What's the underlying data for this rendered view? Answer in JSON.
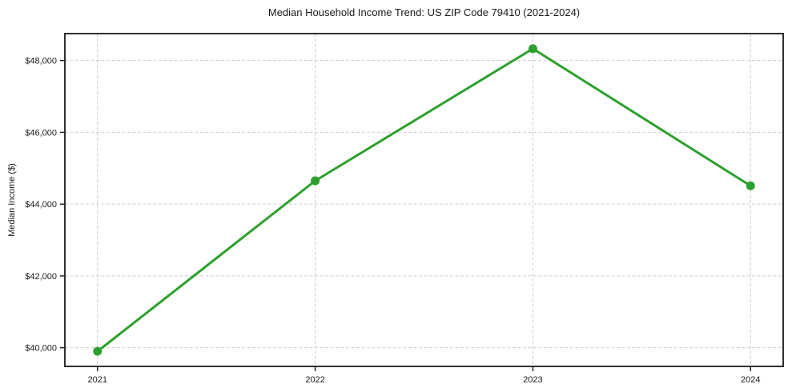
{
  "chart_data": {
    "type": "line",
    "title": "Median Household Income Trend: US ZIP Code 79410 (2021-2024)",
    "xlabel": "",
    "ylabel": "Median Income ($)",
    "x": [
      2021,
      2022,
      2023,
      2024
    ],
    "x_tick_labels": [
      "2021",
      "2022",
      "2023",
      "2024"
    ],
    "values": [
      39900,
      44650,
      48330,
      44510
    ],
    "y_ticks": [
      40000,
      42000,
      44000,
      46000,
      48000
    ],
    "y_tick_labels": [
      "$40,000",
      "$42,000",
      "$44,000",
      "$46,000",
      "$48,000"
    ],
    "xlim": [
      2020.85,
      2024.15
    ],
    "ylim": [
      39480,
      48750
    ],
    "grid": true,
    "grid_style": "dashed",
    "legend_position": "none",
    "line_color": "#2ca02c",
    "marker": "circle",
    "marker_radius": 5.5,
    "background_color": "#ffffff",
    "text_color": "#1a1a1a",
    "grid_color": "#cdcdcd"
  }
}
